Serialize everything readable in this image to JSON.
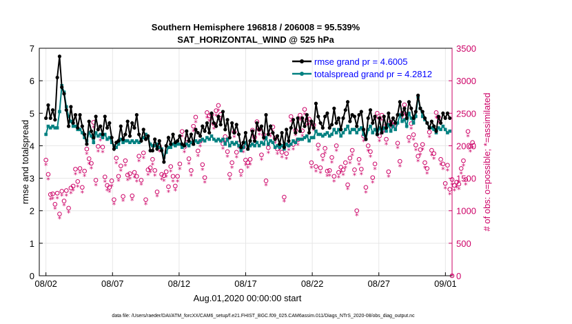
{
  "chart_data": {
    "type": "line",
    "title": "Southern Hemisphere 196818 / 206008 = 95.539%",
    "subtitle": "SAT_HORIZONTAL_WIND @ 525 hPa",
    "xlabel": "Aug.01,2020 00:00:00 start",
    "ylabel_left": "rmse and totalspread",
    "ylabel_right": "# of obs: o=possible; *=assimilated",
    "xlim": [
      0.5,
      31.5
    ],
    "ylim_left": [
      0,
      7
    ],
    "ylim_right": [
      0,
      3500
    ],
    "x_ticks": [
      1,
      6,
      11,
      16,
      21,
      26,
      31
    ],
    "x_tick_labels": [
      "08/02",
      "08/07",
      "08/12",
      "08/17",
      "08/22",
      "08/27",
      "09/01"
    ],
    "y_ticks_left": [
      0,
      1,
      2,
      3,
      4,
      5,
      6,
      7
    ],
    "y_ticks_right": [
      0,
      500,
      1000,
      1500,
      2000,
      2500,
      3000,
      3500
    ],
    "grid": true,
    "legend_position": "top-right",
    "colors": {
      "rmse": "#000000",
      "spread": "#008080",
      "obs": "#cc0066",
      "axis_right": "#cc0066"
    },
    "series": [
      {
        "name": "rmse grand pr = 4.6005",
        "axis": "left",
        "values": [
          4.85,
          5.25,
          4.85,
          5.1,
          4.8,
          6.1,
          6.75,
          5.8,
          5.6,
          5.1,
          4.6,
          5.2,
          4.7,
          4.95,
          4.55,
          4.95,
          4.6,
          4.35,
          4.05,
          4.75,
          4.45,
          4.25,
          4.9,
          4.5,
          4.6,
          4.35,
          4.9,
          4.55,
          4.7,
          4.25,
          3.9,
          4.1,
          4.15,
          4.6,
          4.2,
          4.35,
          4.75,
          4.3,
          4.7,
          4.55,
          4.95,
          4.35,
          4.15,
          4.5,
          4.2,
          4.3,
          3.85,
          3.85,
          4.2,
          3.9,
          4.15,
          3.85,
          3.5,
          4.0,
          4.25,
          4.05,
          4.35,
          4.1,
          4.15,
          4.3,
          4.05,
          4.0,
          4.45,
          4.15,
          4.35,
          4.05,
          4.5,
          4.4,
          4.3,
          4.6,
          4.45,
          4.7,
          4.4,
          5.0,
          4.7,
          4.6,
          4.9,
          4.65,
          5.05,
          4.5,
          4.8,
          4.25,
          4.7,
          4.4,
          4.65,
          4.35,
          3.95,
          4.1,
          4.4,
          3.9,
          4.15,
          4.45,
          4.15,
          4.7,
          4.5,
          4.6,
          4.25,
          4.95,
          4.35,
          4.6,
          4.4,
          4.2,
          4.3,
          4.05,
          4.4,
          3.95,
          4.5,
          4.15,
          4.55,
          4.8,
          4.4,
          4.85,
          4.45,
          4.85,
          4.6,
          4.95,
          4.4,
          4.75,
          4.55,
          5.3,
          4.9,
          4.7,
          4.55,
          4.9,
          5.0,
          4.55,
          4.65,
          5.15,
          4.7,
          4.85,
          4.5,
          4.85,
          5.1,
          5.35,
          4.75,
          4.95,
          4.9,
          4.6,
          4.95,
          5.05,
          4.5,
          4.2,
          4.85,
          5.1,
          4.7,
          4.9,
          4.35,
          4.85,
          4.4,
          4.9,
          4.55,
          5.0,
          4.65,
          4.85,
          4.7,
          4.95,
          5.35,
          4.95,
          5.15,
          4.85,
          5.35,
          5.15,
          4.85,
          5.05,
          5.55,
          5.15,
          5.05,
          4.85,
          4.7,
          4.55,
          4.75,
          4.6,
          4.45,
          4.9,
          4.7,
          5.0,
          4.85,
          5.0,
          4.85
        ]
      },
      {
        "name": "totalspread grand pr = 4.2812",
        "axis": "left",
        "values": [
          4.35,
          4.6,
          4.55,
          4.6,
          4.55,
          4.55,
          5.05,
          5.85,
          5.65,
          5.2,
          4.9,
          4.75,
          4.6,
          4.6,
          4.5,
          4.5,
          4.4,
          4.25,
          4.15,
          4.4,
          4.3,
          4.1,
          4.4,
          4.3,
          4.35,
          4.25,
          4.35,
          4.2,
          4.25,
          4.1,
          4.0,
          3.95,
          4.05,
          4.2,
          4.1,
          4.15,
          4.15,
          4.1,
          4.15,
          4.1,
          4.15,
          4.1,
          4.2,
          4.25,
          4.35,
          4.25,
          4.05,
          4.0,
          4.0,
          4.05,
          3.95,
          3.9,
          3.65,
          3.8,
          3.95,
          3.95,
          4.05,
          4.0,
          4.05,
          4.05,
          3.95,
          4.0,
          4.05,
          4.0,
          4.1,
          4.05,
          4.15,
          4.1,
          4.15,
          4.2,
          4.15,
          4.25,
          4.2,
          4.3,
          4.2,
          4.15,
          4.2,
          4.15,
          4.2,
          4.05,
          4.2,
          4.0,
          4.1,
          4.05,
          4.1,
          4.0,
          3.85,
          3.95,
          4.1,
          3.9,
          4.0,
          4.05,
          4.0,
          4.1,
          4.0,
          4.1,
          4.05,
          4.25,
          4.05,
          4.15,
          4.1,
          3.95,
          4.0,
          3.95,
          4.0,
          3.9,
          4.05,
          4.0,
          4.05,
          4.15,
          4.1,
          4.2,
          4.2,
          4.2,
          4.25,
          4.3,
          4.15,
          4.25,
          4.25,
          4.45,
          4.35,
          4.35,
          4.3,
          4.35,
          4.4,
          4.3,
          4.35,
          4.5,
          4.4,
          4.5,
          4.3,
          4.4,
          4.5,
          4.6,
          4.4,
          4.5,
          4.5,
          4.4,
          4.5,
          4.55,
          4.35,
          4.2,
          4.5,
          4.6,
          4.4,
          4.5,
          4.35,
          4.55,
          4.4,
          4.55,
          4.45,
          4.65,
          4.45,
          4.6,
          4.5,
          4.7,
          4.95,
          4.75,
          4.8,
          4.6,
          5.0,
          4.85,
          4.7,
          4.9,
          5.5,
          5.15,
          4.9,
          4.8,
          4.7,
          4.55,
          4.55,
          4.5,
          4.4,
          4.55,
          4.5,
          4.6,
          4.5,
          4.4,
          4.45
        ]
      },
      {
        "name": "# of obs possible",
        "axis": "right",
        "marker": "o",
        "values": [
          1780,
          1560,
          1250,
          1260,
          1100,
          1270,
          950,
          1300,
          1150,
          1310,
          1040,
          1350,
          1380,
          1640,
          1450,
          1650,
          1360,
          1610,
          1950,
          1800,
          1730,
          2360,
          1470,
          1990,
          2160,
          1980,
          1520,
          1390,
          1360,
          1460,
          1170,
          1810,
          1530,
          1690,
          1220,
          1770,
          1550,
          1570,
          1230,
          1590,
          1530,
          1840,
          1470,
          1890,
          1170,
          1630,
          1660,
          1790,
          1620,
          1290,
          1990,
          1560,
          1540,
          1600,
          1370,
          1680,
          1530,
          1380,
          1530,
          1720,
          2220,
          1980,
          2110,
          1800,
          1620,
          2300,
          2440,
          1920,
          2070,
          1710,
          1510,
          2510,
          2460,
          2480,
          2340,
          2540,
          2620,
          2480,
          2030,
          2140,
          1910,
          1560,
          1740,
          2210,
          1900,
          2040,
          1610,
          1980,
          1780,
          1740,
          1790,
          2240,
          2130,
          2370,
          2250,
          1860,
          2170,
          1460,
          1970,
          2220,
          2290,
          2120,
          1950,
          2010,
          1900,
          1210,
          1880,
          2010,
          2450,
          2020,
          2240,
          2090,
          2470,
          2230,
          2560,
          2400,
          2410,
          1740,
          2320,
          1680,
          2010,
          1660,
          1850,
          1960,
          1610,
          1620,
          1820,
          1530,
          2000,
          1590,
          1670,
          1630,
          1740,
          1400,
          1810,
          1930,
          1630,
          1000,
          1790,
          1640,
          2150,
          1360,
          2000,
          1910,
          1510,
          1720,
          2500,
          2150,
          2470,
          2290,
          2100,
          1600,
          2360,
          2370,
          2340,
          2040,
          1760,
          2500,
          2630,
          2480,
          2130,
          2340,
          2170,
          2010,
          1840,
          1940,
          2020,
          1740,
          1650,
          2210,
          1930,
          1880,
          2510,
          2440,
          1790,
          1720,
          1420,
          1700,
          1330,
          1480,
          1390,
          1440,
          1410,
          1650,
          1770,
          1480,
          2220,
          1990,
          2050
        ]
      },
      {
        "name": "# of obs assimilated",
        "axis": "right",
        "marker": "*",
        "values": [
          1700,
          1480,
          1170,
          1180,
          1030,
          1190,
          880,
          1230,
          1080,
          1230,
          970,
          1270,
          1310,
          1560,
          1370,
          1580,
          1280,
          1530,
          1870,
          1720,
          1650,
          2280,
          1390,
          1910,
          2080,
          1900,
          1440,
          1310,
          1290,
          1380,
          1100,
          1730,
          1460,
          1610,
          1150,
          1690,
          1470,
          1490,
          1160,
          1510,
          1450,
          1760,
          1400,
          1810,
          1100,
          1550,
          1590,
          1710,
          1540,
          1220,
          1910,
          1480,
          1460,
          1520,
          1290,
          1600,
          1450,
          1310,
          1450,
          1640,
          2140,
          1900,
          2030,
          1720,
          1540,
          2220,
          2360,
          1840,
          1990,
          1630,
          1430,
          2430,
          2380,
          2400,
          2260,
          2460,
          2540,
          2400,
          1950,
          2060,
          1830,
          1480,
          1660,
          2130,
          1820,
          1960,
          1530,
          1900,
          1700,
          1660,
          1710,
          2160,
          2050,
          2290,
          2170,
          1780,
          2090,
          1390,
          1890,
          2140,
          2210,
          2040,
          1870,
          1930,
          1820,
          1140,
          1800,
          1930,
          2370,
          1940,
          2160,
          2010,
          2390,
          2150,
          2480,
          2320,
          2330,
          1660,
          2240,
          1600,
          1930,
          1580,
          1770,
          1880,
          1530,
          1540,
          1740,
          1450,
          1920,
          1510,
          1590,
          1550,
          1660,
          1330,
          1730,
          1850,
          1550,
          930,
          1710,
          1560,
          2070,
          1280,
          1920,
          1830,
          1430,
          1640,
          2420,
          2070,
          2390,
          2210,
          2020,
          1520,
          2280,
          2290,
          2260,
          1960,
          1680,
          2420,
          2550,
          2400,
          2050,
          2260,
          2090,
          1930,
          1760,
          1860,
          1940,
          1660,
          1570,
          2130,
          1850,
          1800,
          2430,
          2360,
          1710,
          1640,
          1340,
          1620,
          1250,
          1400,
          1310,
          1360,
          1330,
          1570,
          1690,
          1400,
          2140,
          1910,
          1970
        ]
      }
    ],
    "footnote": "data file: /Users/raeder/DAI/ATM_forcXX/CAM6_setup/f.e21.FHIST_BGC.f09_025.CAM6assim.011/Diags_NTrS_2020-08/obs_diag_output.nc"
  }
}
